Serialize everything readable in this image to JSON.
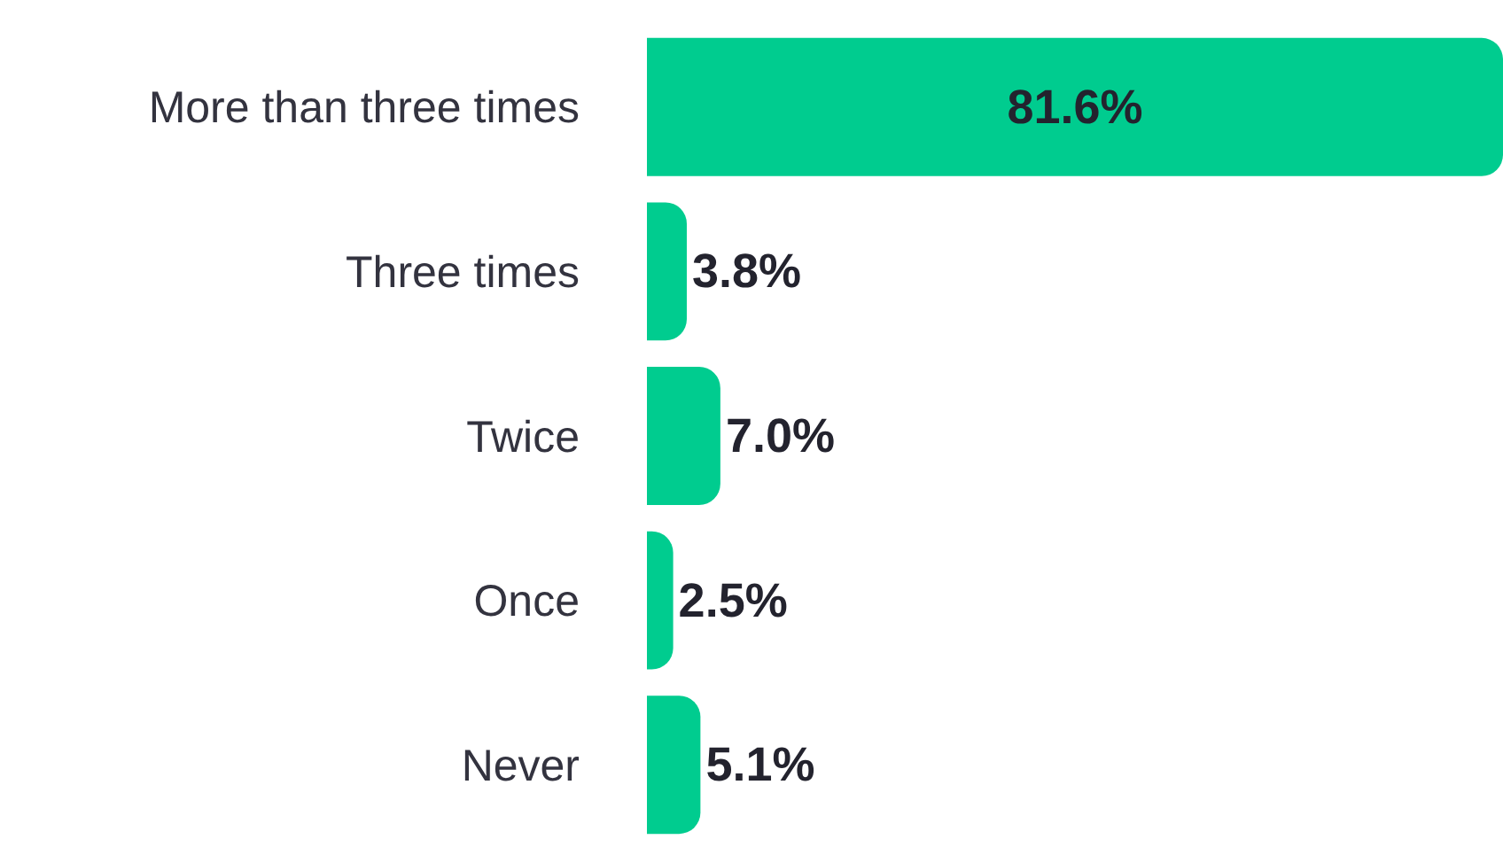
{
  "chart_data": {
    "type": "bar",
    "orientation": "horizontal",
    "categories": [
      "More than three times",
      "Three times",
      "Twice",
      "Once",
      "Never"
    ],
    "values": [
      81.6,
      3.8,
      7.0,
      2.5,
      5.1
    ],
    "value_labels": [
      "81.6%",
      "3.8%",
      "7.0%",
      "2.5%",
      "5.1%"
    ],
    "color": "#00cc8f",
    "xlim": [
      0,
      81.6
    ],
    "tick_labels": "y"
  }
}
